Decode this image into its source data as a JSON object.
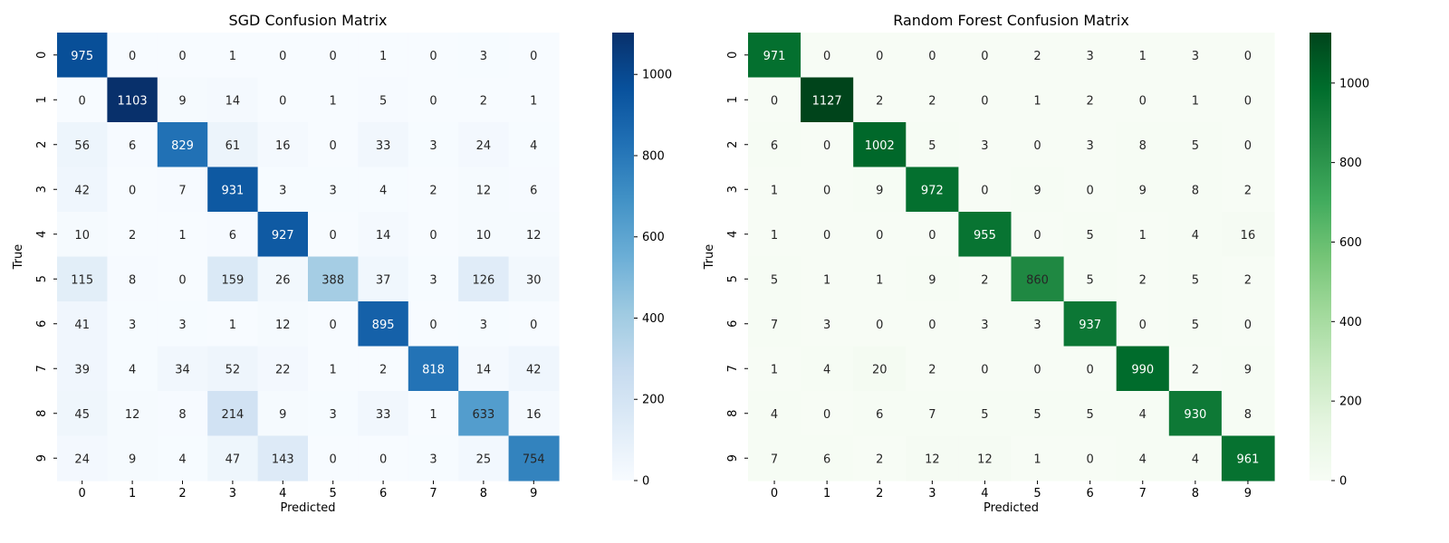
{
  "chart_data": [
    {
      "type": "heatmap",
      "title": "SGD Confusion Matrix",
      "xlabel": "Predicted",
      "ylabel": "True",
      "x_categories": [
        "0",
        "1",
        "2",
        "3",
        "4",
        "5",
        "6",
        "7",
        "8",
        "9"
      ],
      "y_categories": [
        "0",
        "1",
        "2",
        "3",
        "4",
        "5",
        "6",
        "7",
        "8",
        "9"
      ],
      "values": [
        [
          975,
          0,
          0,
          1,
          0,
          0,
          1,
          0,
          3,
          0
        ],
        [
          0,
          1103,
          9,
          14,
          0,
          1,
          5,
          0,
          2,
          1
        ],
        [
          56,
          6,
          829,
          61,
          16,
          0,
          33,
          3,
          24,
          4
        ],
        [
          42,
          0,
          7,
          931,
          3,
          3,
          4,
          2,
          12,
          6
        ],
        [
          10,
          2,
          1,
          6,
          927,
          0,
          14,
          0,
          10,
          12
        ],
        [
          115,
          8,
          0,
          159,
          26,
          388,
          37,
          3,
          126,
          30
        ],
        [
          41,
          3,
          3,
          1,
          12,
          0,
          895,
          0,
          3,
          0
        ],
        [
          39,
          4,
          34,
          52,
          22,
          1,
          2,
          818,
          14,
          42
        ],
        [
          45,
          12,
          8,
          214,
          9,
          3,
          33,
          1,
          633,
          16
        ],
        [
          24,
          9,
          4,
          47,
          143,
          0,
          0,
          3,
          25,
          754
        ]
      ],
      "colormap": "Blues",
      "vmin": 0,
      "vmax": 1103,
      "colorbar_ticks": [
        0,
        200,
        400,
        600,
        800,
        1000
      ]
    },
    {
      "type": "heatmap",
      "title": "Random Forest Confusion Matrix",
      "xlabel": "Predicted",
      "ylabel": "True",
      "x_categories": [
        "0",
        "1",
        "2",
        "3",
        "4",
        "5",
        "6",
        "7",
        "8",
        "9"
      ],
      "y_categories": [
        "0",
        "1",
        "2",
        "3",
        "4",
        "5",
        "6",
        "7",
        "8",
        "9"
      ],
      "values": [
        [
          971,
          0,
          0,
          0,
          0,
          2,
          3,
          1,
          3,
          0
        ],
        [
          0,
          1127,
          2,
          2,
          0,
          1,
          2,
          0,
          1,
          0
        ],
        [
          6,
          0,
          1002,
          5,
          3,
          0,
          3,
          8,
          5,
          0
        ],
        [
          1,
          0,
          9,
          972,
          0,
          9,
          0,
          9,
          8,
          2
        ],
        [
          1,
          0,
          0,
          0,
          955,
          0,
          5,
          1,
          4,
          16
        ],
        [
          5,
          1,
          1,
          9,
          2,
          860,
          5,
          2,
          5,
          2
        ],
        [
          7,
          3,
          0,
          0,
          3,
          3,
          937,
          0,
          5,
          0
        ],
        [
          1,
          4,
          20,
          2,
          0,
          0,
          0,
          990,
          2,
          9
        ],
        [
          4,
          0,
          6,
          7,
          5,
          5,
          5,
          4,
          930,
          8
        ],
        [
          7,
          6,
          2,
          12,
          12,
          1,
          0,
          4,
          4,
          961
        ]
      ],
      "colormap": "Greens",
      "vmin": 0,
      "vmax": 1127,
      "colorbar_ticks": [
        0,
        200,
        400,
        600,
        800,
        1000
      ]
    }
  ]
}
